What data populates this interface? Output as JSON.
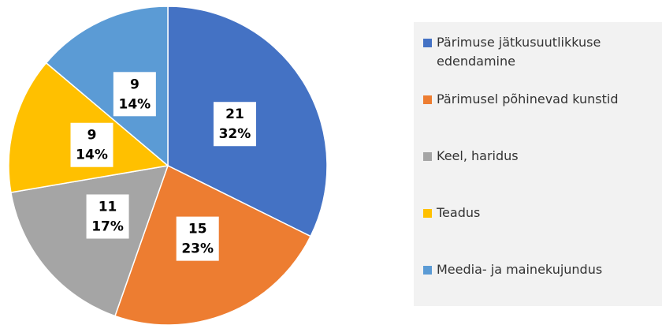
{
  "chart_data": {
    "type": "pie",
    "categories": [
      "Pärimuse jätkusuutlikkuse edendamine",
      "Pärimusel põhinevad kunstid",
      "Keel, haridus",
      "Teadus",
      "Meedia- ja mainekujundus"
    ],
    "values": [
      21,
      15,
      11,
      9,
      9
    ],
    "percent_labels": [
      "32%",
      "23%",
      "17%",
      "14%",
      "14%"
    ],
    "colors": [
      "#4472c4",
      "#ed7d31",
      "#a5a5a5",
      "#ffc000",
      "#5b9bd5"
    ],
    "legend": "right"
  }
}
